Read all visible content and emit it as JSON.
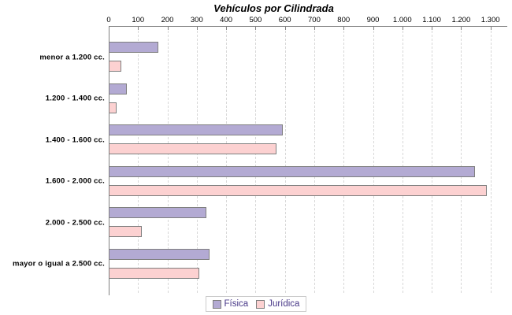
{
  "title": "Vehículos por Cilindrada",
  "chart_data": {
    "type": "bar",
    "orientation": "horizontal",
    "title": "Vehículos por Cilindrada",
    "xlabel": "",
    "ylabel": "",
    "xlim": [
      0,
      1300
    ],
    "x_tick_interval": 100,
    "x_tick_labels": [
      "0",
      "100",
      "200",
      "300",
      "400",
      "500",
      "600",
      "700",
      "800",
      "900",
      "1.000",
      "1.100",
      "1.200",
      "1.300"
    ],
    "grid": "vertical-dashed",
    "legend_position": "bottom-center",
    "categories": [
      "menor a 1.200 cc.",
      "1.200 - 1.400 cc.",
      "1.400 - 1.600 cc.",
      "1.600 - 2.000 cc.",
      "2.000 - 2.500 cc.",
      "mayor o igual a 2.500 cc."
    ],
    "series": [
      {
        "name": "Física",
        "color": "#b3aad3",
        "values": [
          165,
          60,
          590,
          1245,
          330,
          340
        ]
      },
      {
        "name": "Jurídica",
        "color": "#fcd1d1",
        "values": [
          40,
          25,
          570,
          1285,
          110,
          305
        ]
      }
    ]
  },
  "legend": {
    "items": [
      {
        "label": "Física",
        "color": "#b3aad3"
      },
      {
        "label": "Jurídica",
        "color": "#fcd1d1"
      }
    ]
  },
  "colors": {
    "background": "#ffffff",
    "axis": "#808080",
    "bar_border": "#7f7f7f",
    "gridline": "#d8d8d8",
    "title_text": "#000000",
    "legend_text": "#473787",
    "legend_border": "#cccccc"
  }
}
